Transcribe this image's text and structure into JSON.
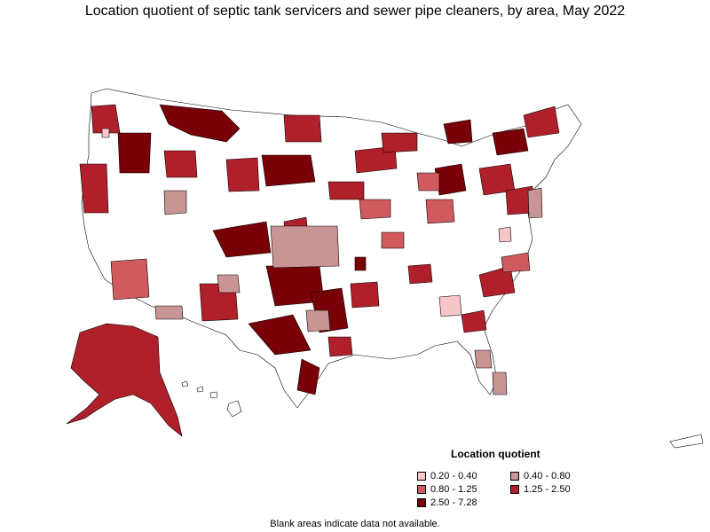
{
  "title": "Location quotient of septic tank servicers and sewer pipe cleaners, by area, May 2022",
  "legend": {
    "title": "Location quotient",
    "items": [
      {
        "label": "0.20 - 0.40",
        "color": "#f7c6c8"
      },
      {
        "label": "0.40 - 0.80",
        "color": "#c89494"
      },
      {
        "label": "0.80 - 1.25",
        "color": "#d05a5e"
      },
      {
        "label": "1.25 - 2.50",
        "color": "#b0202a"
      },
      {
        "label": "2.50 - 7.28",
        "color": "#7a0008"
      }
    ]
  },
  "note": "Blank areas indicate data not available.",
  "colors": {
    "none": "#ffffff",
    "border": "#000000"
  }
}
